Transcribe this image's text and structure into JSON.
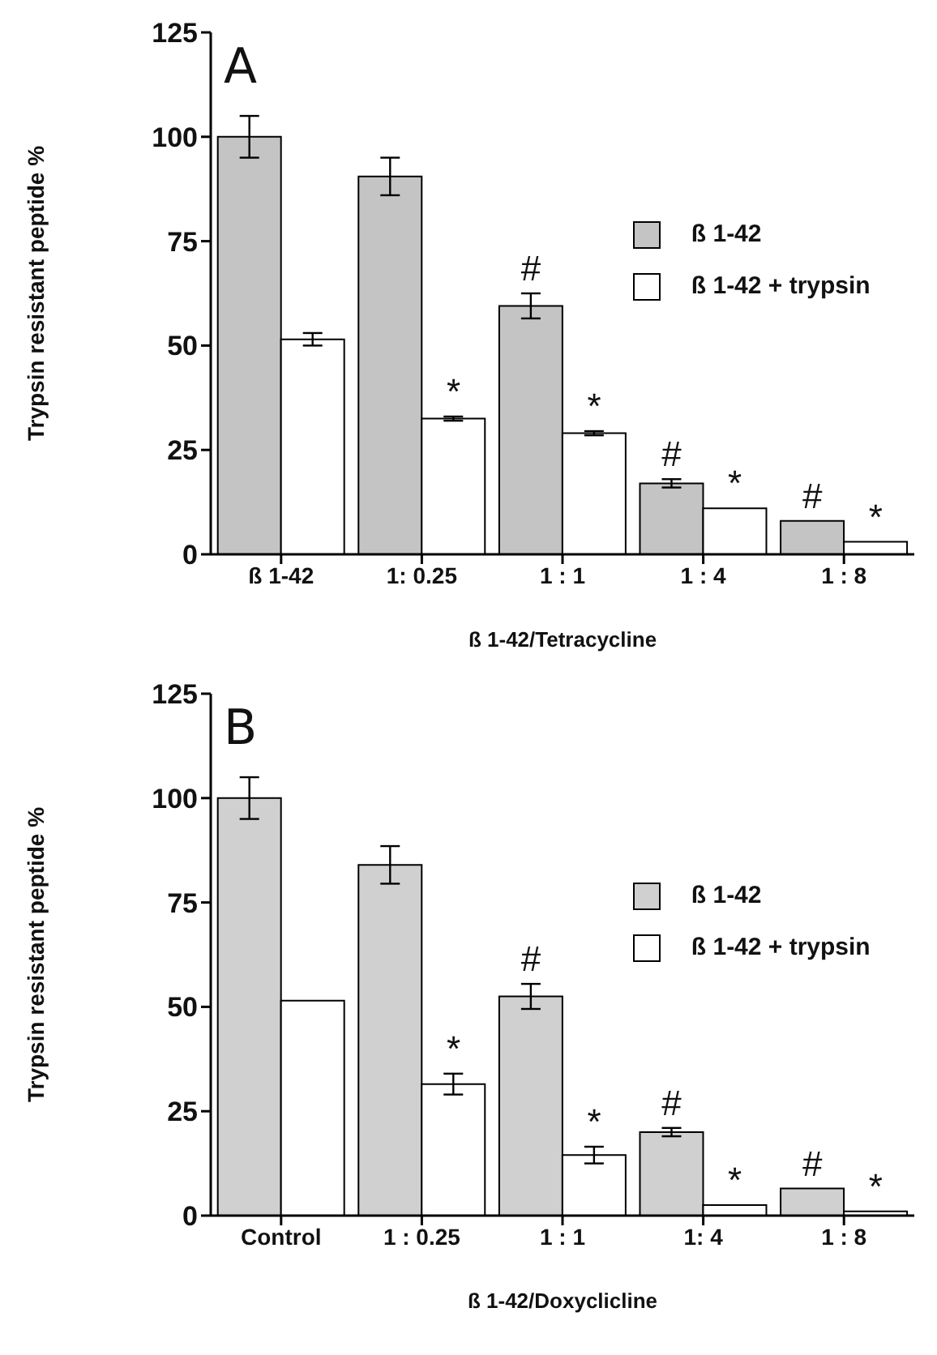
{
  "chart_data": [
    {
      "type": "bar",
      "categories": [
        "ß 1-42",
        "1: 0.25",
        "1 : 1",
        "1 : 4",
        "1 :  8"
      ],
      "xlabel": "ß 1-42/Tetracycline",
      "ylabel": "Trypsin resistant peptide %",
      "ylim": [
        0,
        125
      ],
      "yticks": [
        0,
        25,
        50,
        75,
        100,
        125
      ],
      "grid": false,
      "legend": "right",
      "series": [
        {
          "name": "ß 1-42",
          "color": "#c4c4c4",
          "values": [
            100,
            90.5,
            59.5,
            17,
            8
          ],
          "errors": [
            5,
            4.5,
            3,
            1,
            null
          ]
        },
        {
          "name": "ß 1-42 +  trypsin",
          "color": "#ffffff",
          "values": [
            51.5,
            32.5,
            29,
            11,
            3
          ],
          "errors": [
            1.5,
            0.5,
            0.5,
            null,
            null
          ]
        }
      ],
      "annotations": [
        "A",
        {
          "text": "*",
          "x": "1: 0.25",
          "y": 32.5
        },
        {
          "text": "#",
          "x": "1 : 1",
          "y": 59.5
        },
        {
          "text": "*",
          "x": "1 : 1",
          "y": 29
        },
        {
          "text": "#",
          "x": "1 : 4",
          "y": 17
        },
        {
          "text": "*",
          "x": "1 : 4",
          "y": 11
        },
        {
          "text": "#",
          "x": "1 :  8",
          "y": 8
        },
        {
          "text": "*",
          "x": "1 :  8",
          "y": 3
        }
      ]
    },
    {
      "type": "bar",
      "categories": [
        "Control",
        "1 : 0.25",
        "1 : 1",
        "1: 4",
        "1 : 8"
      ],
      "xlabel": "ß 1-42/Doxyclicline",
      "ylabel": "Trypsin  resistant peptide %",
      "ylim": [
        0,
        125
      ],
      "yticks": [
        0,
        25,
        50,
        75,
        100,
        125
      ],
      "grid": false,
      "legend": "right",
      "series": [
        {
          "name": "ß 1-42",
          "color": "#d0d0d0",
          "values": [
            100,
            84,
            52.5,
            20,
            6.5
          ],
          "errors": [
            5,
            4.5,
            3,
            1,
            null
          ]
        },
        {
          "name": "ß 1-42 + trypsin",
          "color": "#ffffff",
          "values": [
            51.5,
            31.5,
            14.5,
            2.5,
            1
          ],
          "errors": [
            null,
            2.5,
            2,
            null,
            null
          ]
        }
      ],
      "annotations": [
        "B",
        {
          "text": "*",
          "x": "1 : 0.25",
          "y": 31.5
        },
        {
          "text": "#",
          "x": "1 : 1",
          "y": 52.5
        },
        {
          "text": "*",
          "x": "1 : 1",
          "y": 14.5
        },
        {
          "text": "#",
          "x": "1: 4",
          "y": 20
        },
        {
          "text": "*",
          "x": "1: 4",
          "y": 2.5
        },
        {
          "text": "#",
          "x": "1 : 8",
          "y": 6.5
        },
        {
          "text": "*",
          "x": "1 : 8",
          "y": 1
        }
      ]
    }
  ]
}
